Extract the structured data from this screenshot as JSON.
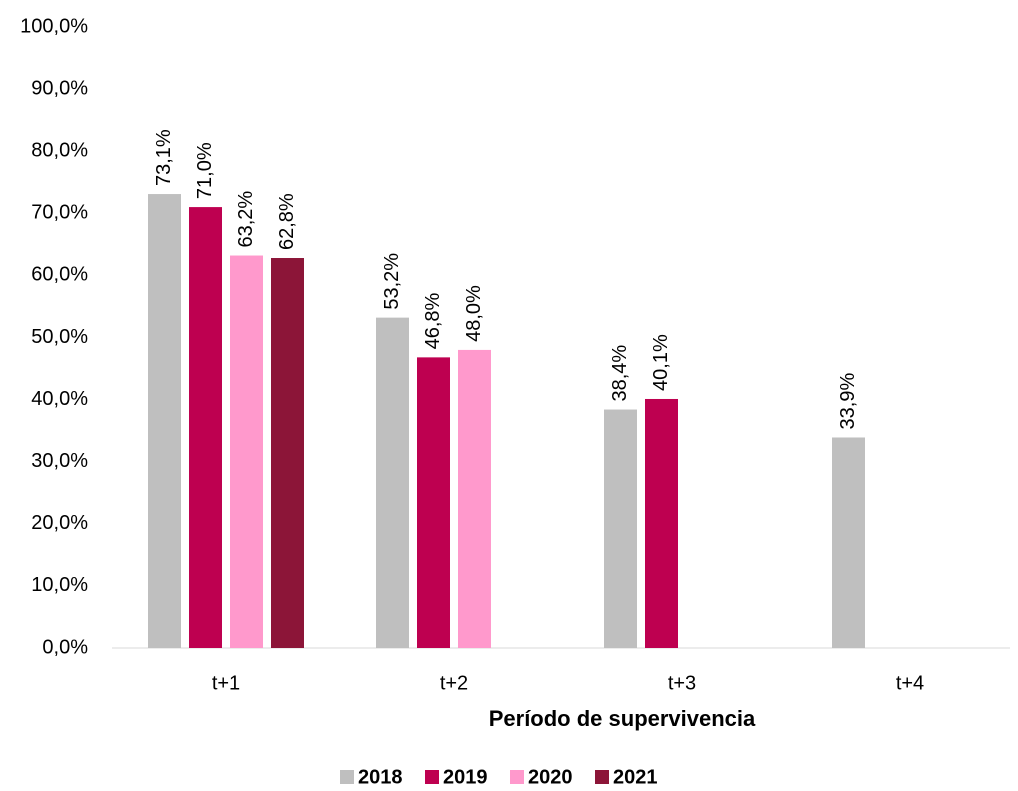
{
  "chart_data": {
    "type": "bar",
    "categories": [
      "t+1",
      "t+2",
      "t+3",
      "t+4"
    ],
    "series": [
      {
        "name": "2018",
        "color": "#bfbfbf",
        "values": [
          73.1,
          53.2,
          38.4,
          33.9
        ],
        "value_labels": [
          "73,1%",
          "53,2%",
          "38,4%",
          "33,9%"
        ]
      },
      {
        "name": "2019",
        "color": "#be0050",
        "values": [
          71.0,
          46.8,
          40.1,
          null
        ],
        "value_labels": [
          "71,0%",
          "46,8%",
          "40,1%",
          null
        ]
      },
      {
        "name": "2020",
        "color": "#ff99cc",
        "values": [
          63.2,
          48.0,
          null,
          null
        ],
        "value_labels": [
          "63,2%",
          "48,0%",
          null,
          null
        ]
      },
      {
        "name": "2021",
        "color": "#8c1538",
        "values": [
          62.8,
          null,
          null,
          null
        ],
        "value_labels": [
          "62,8%",
          null,
          null,
          null
        ]
      }
    ],
    "x_label": "Período de supervivencia",
    "ylim": [
      0,
      100
    ],
    "yticks": [
      {
        "value": 0,
        "label": "0,0%"
      },
      {
        "value": 10,
        "label": "10,0%"
      },
      {
        "value": 20,
        "label": "20,0%"
      },
      {
        "value": 30,
        "label": "30,0%"
      },
      {
        "value": 40,
        "label": "40,0%"
      },
      {
        "value": 50,
        "label": "50,0%"
      },
      {
        "value": 60,
        "label": "60,0%"
      },
      {
        "value": 70,
        "label": "70,0%"
      },
      {
        "value": 80,
        "label": "80,0%"
      },
      {
        "value": 90,
        "label": "90,0%"
      },
      {
        "value": 100,
        "label": "100,0%"
      }
    ],
    "grid": false,
    "legend": "bottom"
  }
}
